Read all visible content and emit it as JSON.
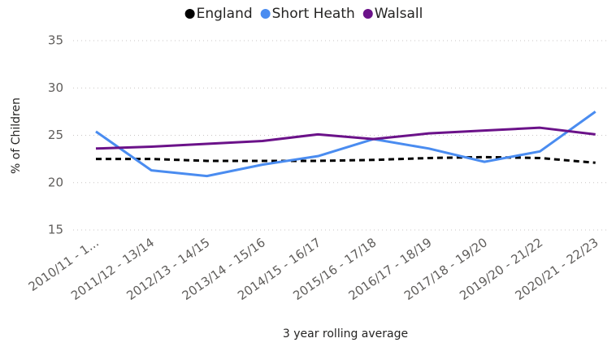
{
  "chart_data": {
    "type": "line",
    "x_label": "3 year rolling average",
    "y_label": "% of Children",
    "categories": [
      "2010/11 - 1...",
      "2011/12 - 13/14",
      "2012/13 - 14/15",
      "2013/14 - 15/16",
      "2014/15 - 16/17",
      "2015/16 - 17/18",
      "2016/17 - 18/19",
      "2017/18 - 19/20",
      "2019/20 - 21/22",
      "2020/21 - 22/23"
    ],
    "series": [
      {
        "name": "England",
        "color": "#000000",
        "dashed": true,
        "values": [
          22.5,
          22.5,
          22.3,
          22.3,
          22.3,
          22.4,
          22.6,
          22.7,
          22.6,
          22.1
        ]
      },
      {
        "name": "Short Heath",
        "color": "#4a8cf0",
        "values": [
          25.4,
          21.3,
          20.7,
          21.9,
          22.8,
          24.6,
          23.6,
          22.2,
          23.3,
          27.5
        ]
      },
      {
        "name": "Walsall",
        "color": "#6b1289",
        "values": [
          23.6,
          23.8,
          24.1,
          24.4,
          25.1,
          24.6,
          25.2,
          25.5,
          25.8,
          25.1
        ]
      }
    ],
    "ylim": [
      15,
      35
    ],
    "yticks": [
      15,
      20,
      25,
      30,
      35
    ],
    "grid": true,
    "legend": "top"
  }
}
